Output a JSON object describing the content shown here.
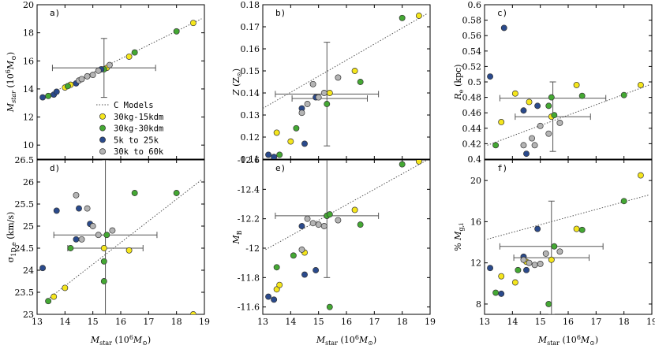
{
  "legend": {
    "entries": [
      {
        "label": "C Models",
        "kind": "line",
        "color": "#555555"
      },
      {
        "label": "30kg-15kdm",
        "kind": "marker",
        "color": "#f5e61c"
      },
      {
        "label": "30kg-30kdm",
        "kind": "marker",
        "color": "#44a833"
      },
      {
        "label": "5k to 25k",
        "kind": "marker",
        "color": "#2a4a8c"
      },
      {
        "label": "30k to 60k",
        "kind": "marker",
        "color": "#b4b4b4"
      }
    ]
  },
  "chart_data": [
    {
      "id": "a",
      "type": "scatter",
      "panel_label": "a)",
      "xlabel": "M_star (10^6 M_sun)",
      "ylabel": "M_star (10^6 M_sun)",
      "xlim": [
        13,
        19
      ],
      "ylim": [
        9,
        20
      ],
      "xticks": [
        "13",
        "14",
        "15",
        "16",
        "17",
        "18",
        "19"
      ],
      "show_xticklabels": false,
      "yticks": [
        "10",
        "12",
        "14",
        "16",
        "18",
        "20"
      ],
      "model_line": {
        "x": [
          13.1,
          18.9
        ],
        "y": [
          13.3,
          19.0
        ]
      },
      "error_bars": [
        {
          "x": 15.4,
          "y": 15.5,
          "xerr": 1.85,
          "yerr": 2.1
        }
      ],
      "series": [
        {
          "name": "30kg-15kdm",
          "points": [
            [
              14.0,
              14.1
            ],
            [
              14.2,
              14.3
            ],
            [
              15.5,
              15.5
            ],
            [
              16.3,
              16.3
            ],
            [
              18.6,
              18.7
            ]
          ]
        },
        {
          "name": "30kg-30kdm",
          "points": [
            [
              13.4,
              13.5
            ],
            [
              14.1,
              14.2
            ],
            [
              15.4,
              15.4
            ],
            [
              16.5,
              16.6
            ],
            [
              18.0,
              18.1
            ]
          ]
        },
        {
          "name": "5k to 25k",
          "points": [
            [
              13.2,
              13.4
            ],
            [
              13.6,
              13.6
            ],
            [
              13.7,
              13.8
            ],
            [
              14.4,
              14.4
            ],
            [
              15.3,
              15.4
            ]
          ]
        },
        {
          "name": "30k to 60k",
          "points": [
            [
              14.5,
              14.6
            ],
            [
              14.6,
              14.7
            ],
            [
              14.8,
              14.9
            ],
            [
              15.0,
              15.0
            ],
            [
              15.2,
              15.3
            ],
            [
              15.6,
              15.7
            ]
          ]
        }
      ]
    },
    {
      "id": "b",
      "type": "scatter",
      "panel_label": "b)",
      "xlabel": "M_star (10^6 M_sun)",
      "ylabel": "Z (Z_sun)",
      "xlim": [
        13,
        19
      ],
      "ylim": [
        0.11,
        0.18
      ],
      "xticks": [
        "13",
        "14",
        "15",
        "16",
        "17",
        "18",
        "19"
      ],
      "show_xticklabels": false,
      "yticks": [
        "0.11",
        "0.12",
        "0.13",
        "0.14",
        "0.15",
        "0.16",
        "0.17",
        "0.18"
      ],
      "model_line": {
        "x": [
          13.0,
          18.9
        ],
        "y": [
          0.133,
          0.176
        ]
      },
      "error_bars": [
        {
          "x": 15.3,
          "y": 0.1395,
          "xerr": 1.85,
          "yerr": 0.0235
        },
        {
          "x": 15.4,
          "y": 0.1375,
          "xerr": 1.35,
          "yerr": 0.0
        }
      ],
      "series": [
        {
          "name": "30kg-15kdm",
          "points": [
            [
              13.5,
              0.122
            ],
            [
              14.0,
              0.118
            ],
            [
              15.4,
              0.14
            ],
            [
              16.3,
              0.15
            ],
            [
              18.6,
              0.175
            ]
          ]
        },
        {
          "name": "30kg-30kdm",
          "points": [
            [
              13.6,
              0.112
            ],
            [
              14.2,
              0.124
            ],
            [
              15.3,
              0.135
            ],
            [
              16.5,
              0.145
            ],
            [
              18.0,
              0.174
            ]
          ]
        },
        {
          "name": "5k to 25k",
          "points": [
            [
              13.2,
              0.112
            ],
            [
              13.4,
              0.111
            ],
            [
              14.4,
              0.133
            ],
            [
              14.5,
              0.117
            ],
            [
              14.9,
              0.138
            ]
          ]
        },
        {
          "name": "30k to 60k",
          "points": [
            [
              14.4,
              0.131
            ],
            [
              14.6,
              0.135
            ],
            [
              14.8,
              0.144
            ],
            [
              15.0,
              0.138
            ],
            [
              15.2,
              0.14
            ],
            [
              15.7,
              0.147
            ]
          ]
        }
      ]
    },
    {
      "id": "c",
      "type": "scatter",
      "panel_label": "c)",
      "xlabel": "M_star (10^6 M_sun)",
      "ylabel": "R_e (kpc)",
      "xlim": [
        13,
        19
      ],
      "ylim": [
        0.4,
        0.6
      ],
      "xticks": [
        "13",
        "14",
        "15",
        "16",
        "17",
        "18",
        "19"
      ],
      "show_xticklabels": false,
      "yticks": [
        "0.4",
        "0.42",
        "0.44",
        "0.46",
        "0.48",
        "0.5",
        "0.52",
        "0.54",
        "0.56",
        "0.58",
        "0.6"
      ],
      "model_line": {
        "x": [
          13.1,
          18.9
        ],
        "y": [
          0.418,
          0.496
        ]
      },
      "error_bars": [
        {
          "x": 15.45,
          "y": 0.479,
          "xerr": 1.9,
          "yerr": 0.0
        },
        {
          "x": 15.45,
          "y": 0.455,
          "xerr": 1.35,
          "yerr": 0.045
        }
      ],
      "series": [
        {
          "name": "30kg-15kdm",
          "points": [
            [
              13.6,
              0.448
            ],
            [
              14.1,
              0.485
            ],
            [
              14.6,
              0.474
            ],
            [
              15.4,
              0.455
            ],
            [
              16.3,
              0.496
            ],
            [
              18.6,
              0.496
            ]
          ]
        },
        {
          "name": "30kg-30kdm",
          "points": [
            [
              13.4,
              0.418
            ],
            [
              15.3,
              0.469
            ],
            [
              15.4,
              0.48
            ],
            [
              15.5,
              0.457
            ],
            [
              16.5,
              0.482
            ],
            [
              18.0,
              0.483
            ]
          ]
        },
        {
          "name": "5k to 25k",
          "points": [
            [
              13.2,
              0.507
            ],
            [
              13.7,
              0.57
            ],
            [
              14.4,
              0.463
            ],
            [
              14.5,
              0.407
            ],
            [
              14.9,
              0.469
            ]
          ]
        },
        {
          "name": "30k to 60k",
          "points": [
            [
              14.4,
              0.418
            ],
            [
              14.7,
              0.427
            ],
            [
              14.8,
              0.418
            ],
            [
              15.0,
              0.443
            ],
            [
              15.3,
              0.433
            ],
            [
              15.7,
              0.447
            ]
          ]
        }
      ]
    },
    {
      "id": "d",
      "type": "scatter",
      "panel_label": "d)",
      "xlabel": "M_star (10^6 M_sun)",
      "ylabel": "sigma_1D,e (km/s)",
      "xlim": [
        13,
        19
      ],
      "ylim": [
        23.0,
        26.5
      ],
      "xticks": [
        "13",
        "14",
        "15",
        "16",
        "17",
        "18",
        "19"
      ],
      "show_xticklabels": true,
      "yticks": [
        "23",
        "23.5",
        "24",
        "24.5",
        "25",
        "25.5",
        "26",
        "26.5"
      ],
      "model_line": {
        "x": [
          13.3,
          18.9
        ],
        "y": [
          23.3,
          26.05
        ]
      },
      "error_bars": [
        {
          "x": 15.45,
          "y": 24.8,
          "xerr": 1.85,
          "yerr": 0.0
        },
        {
          "x": 15.45,
          "y": 24.5,
          "xerr": 1.35,
          "yerr": 2.0
        }
      ],
      "series": [
        {
          "name": "30kg-15kdm",
          "points": [
            [
              13.6,
              23.4
            ],
            [
              14.0,
              23.6
            ],
            [
              15.4,
              24.5
            ],
            [
              16.3,
              24.45
            ],
            [
              18.6,
              23.0
            ]
          ]
        },
        {
          "name": "30kg-30kdm",
          "points": [
            [
              13.4,
              23.3
            ],
            [
              14.2,
              24.5
            ],
            [
              15.4,
              23.75
            ],
            [
              15.4,
              24.2
            ],
            [
              15.5,
              24.8
            ],
            [
              16.5,
              25.75
            ],
            [
              18.0,
              25.75
            ]
          ]
        },
        {
          "name": "5k to 25k",
          "points": [
            [
              13.2,
              24.05
            ],
            [
              13.7,
              25.35
            ],
            [
              14.4,
              24.7
            ],
            [
              14.5,
              25.4
            ],
            [
              14.9,
              25.05
            ]
          ]
        },
        {
          "name": "30k to 60k",
          "points": [
            [
              14.4,
              25.7
            ],
            [
              14.6,
              24.7
            ],
            [
              14.8,
              25.4
            ],
            [
              15.0,
              25.0
            ],
            [
              15.2,
              24.8
            ],
            [
              15.7,
              24.9
            ]
          ]
        }
      ]
    },
    {
      "id": "e",
      "type": "scatter",
      "panel_label": "e)",
      "xlabel": "M_star (10^6 M_sun)",
      "ylabel": "M_B",
      "xlim": [
        13,
        19
      ],
      "ylim": [
        -12.6,
        -11.55
      ],
      "y_inverted": true,
      "xticks": [
        "13",
        "14",
        "15",
        "16",
        "17",
        "18",
        "19"
      ],
      "show_xticklabels": true,
      "yticks": [
        "-11.6",
        "-11.8",
        "-12",
        "-12.2",
        "-12.4",
        "-12.6"
      ],
      "model_line": {
        "x": [
          13.1,
          18.9
        ],
        "y": [
          -11.99,
          -12.6
        ]
      },
      "error_bars": [
        {
          "x": 15.3,
          "y": -12.22,
          "xerr": 1.85,
          "yerr": 0.42
        }
      ],
      "series": [
        {
          "name": "30kg-15kdm",
          "points": [
            [
              13.5,
              -11.72
            ],
            [
              13.6,
              -11.75
            ],
            [
              14.5,
              -11.97
            ],
            [
              15.3,
              -12.22
            ],
            [
              16.3,
              -12.26
            ],
            [
              18.6,
              -12.59
            ]
          ]
        },
        {
          "name": "30kg-30kdm",
          "points": [
            [
              13.5,
              -11.87
            ],
            [
              14.1,
              -11.95
            ],
            [
              15.3,
              -12.22
            ],
            [
              15.4,
              -12.23
            ],
            [
              15.4,
              -11.6
            ],
            [
              16.5,
              -12.16
            ],
            [
              18.0,
              -12.57
            ]
          ]
        },
        {
          "name": "5k to 25k",
          "points": [
            [
              13.2,
              -11.67
            ],
            [
              13.4,
              -11.65
            ],
            [
              14.4,
              -12.15
            ],
            [
              14.5,
              -11.82
            ],
            [
              14.9,
              -11.85
            ]
          ]
        },
        {
          "name": "30k to 60k",
          "points": [
            [
              14.4,
              -11.99
            ],
            [
              14.6,
              -12.2
            ],
            [
              14.8,
              -12.17
            ],
            [
              15.0,
              -12.16
            ],
            [
              15.2,
              -12.15
            ],
            [
              15.7,
              -12.19
            ]
          ]
        }
      ]
    },
    {
      "id": "f",
      "type": "scatter",
      "panel_label": "f)",
      "xlabel": "M_star (10^6 M_sun)",
      "ylabel": "% M_g,i",
      "xlim": [
        13,
        19
      ],
      "ylim": [
        7,
        22
      ],
      "xticks": [
        "13",
        "14",
        "15",
        "16",
        "17",
        "18",
        "19"
      ],
      "show_xticklabels": true,
      "yticks": [
        "8",
        "12",
        "16",
        "20"
      ],
      "model_line": {
        "x": [
          13.1,
          18.9
        ],
        "y": [
          14.3,
          18.6
        ]
      },
      "error_bars": [
        {
          "x": 15.4,
          "y": 13.6,
          "xerr": 1.85,
          "yerr": 0.0
        },
        {
          "x": 15.4,
          "y": 12.5,
          "xerr": 1.35,
          "yerr": 5.5
        }
      ],
      "series": [
        {
          "name": "30kg-15kdm",
          "points": [
            [
              13.6,
              10.7
            ],
            [
              14.1,
              10.1
            ],
            [
              14.5,
              12.1
            ],
            [
              15.4,
              12.3
            ],
            [
              16.3,
              15.3
            ],
            [
              18.6,
              20.5
            ]
          ]
        },
        {
          "name": "30kg-30kdm",
          "points": [
            [
              13.4,
              9.1
            ],
            [
              14.2,
              11.3
            ],
            [
              15.3,
              8.0
            ],
            [
              15.5,
              13.6
            ],
            [
              16.5,
              15.2
            ],
            [
              18.0,
              18.0
            ]
          ]
        },
        {
          "name": "5k to 25k",
          "points": [
            [
              13.2,
              11.5
            ],
            [
              13.6,
              9.0
            ],
            [
              14.4,
              12.6
            ],
            [
              14.5,
              11.3
            ],
            [
              14.9,
              15.3
            ]
          ]
        },
        {
          "name": "30k to 60k",
          "points": [
            [
              14.4,
              12.3
            ],
            [
              14.6,
              12.0
            ],
            [
              14.8,
              11.8
            ],
            [
              15.0,
              11.9
            ],
            [
              15.2,
              12.9
            ],
            [
              15.7,
              13.1
            ]
          ]
        }
      ]
    }
  ]
}
